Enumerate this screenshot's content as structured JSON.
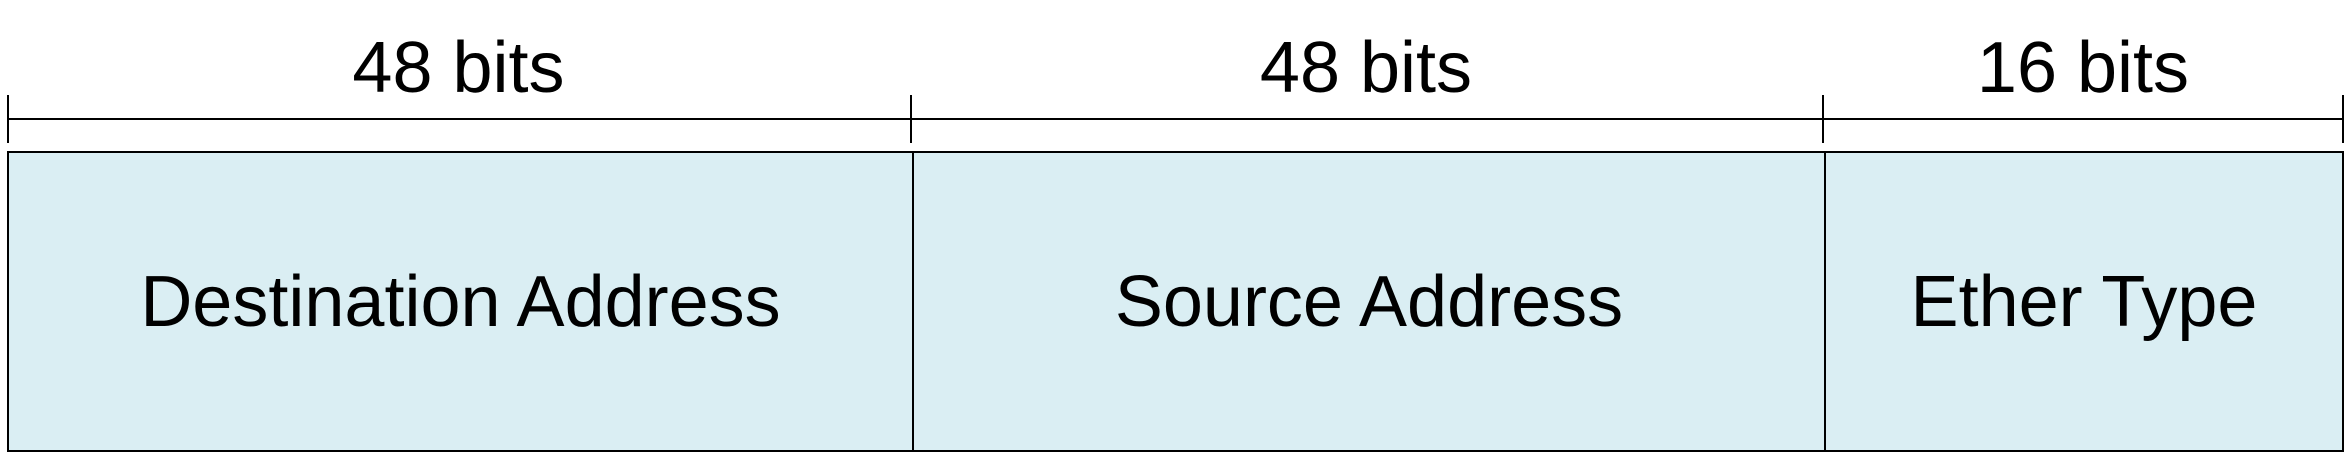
{
  "fields": [
    {
      "name": "Destination Address",
      "size_label": "48 bits",
      "bits": 48
    },
    {
      "name": "Source Address",
      "size_label": "48 bits",
      "bits": 48
    },
    {
      "name": "Ether Type",
      "size_label": "16 bits",
      "bits": 16
    }
  ],
  "colors": {
    "field_fill": "#daeef3",
    "stroke": "#000000"
  }
}
